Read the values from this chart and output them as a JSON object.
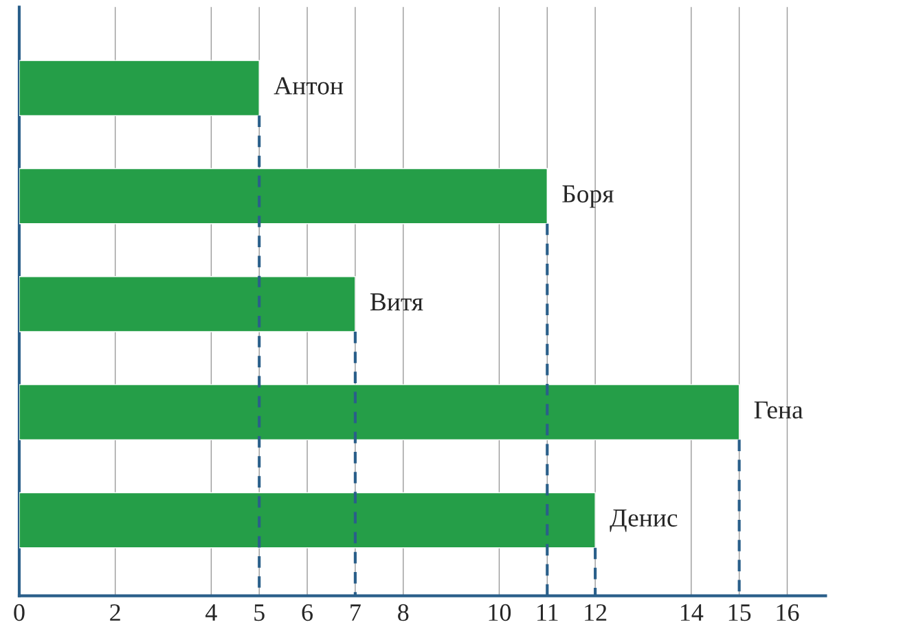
{
  "chart_data": {
    "type": "bar",
    "orientation": "horizontal",
    "categories": [
      "Антон",
      "Боря",
      "Витя",
      "Гена",
      "Денис"
    ],
    "values": [
      5,
      11,
      7,
      15,
      12
    ],
    "color": "#259e48",
    "xlim": [
      0,
      16.8
    ],
    "xticks": [
      0,
      2,
      4,
      5,
      6,
      7,
      8,
      10,
      11,
      12,
      14,
      15,
      16
    ],
    "grid": "x",
    "tick_labels": "x",
    "ref_lines": [
      {
        "axis": "x",
        "value": 5,
        "color": "#2a5f8a",
        "line_style": "dashed"
      },
      {
        "axis": "x",
        "value": 7,
        "color": "#2a5f8a",
        "line_style": "dashed"
      },
      {
        "axis": "x",
        "value": 11,
        "color": "#2a5f8a",
        "line_style": "dashed"
      },
      {
        "axis": "x",
        "value": 12,
        "color": "#2a5f8a",
        "line_style": "dashed"
      },
      {
        "axis": "x",
        "value": 15,
        "color": "#2a5f8a",
        "line_style": "dashed"
      }
    ]
  }
}
